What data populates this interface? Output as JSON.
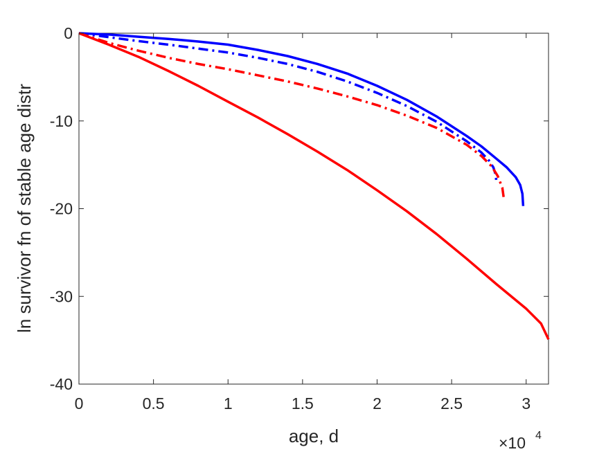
{
  "chart_data": {
    "type": "line",
    "title": "",
    "xlabel": "age, d",
    "ylabel": "ln survivor fn of stable age distr",
    "x_exponent_label": {
      "base": "×10",
      "power": "4"
    },
    "xlim": [
      0,
      31500
    ],
    "ylim": [
      -40,
      0
    ],
    "xticks": [
      0,
      5000,
      10000,
      15000,
      20000,
      25000,
      30000
    ],
    "xtick_labels": [
      "0",
      "0.5",
      "1",
      "1.5",
      "2",
      "2.5",
      "3"
    ],
    "yticks": [
      0,
      -10,
      -20,
      -30,
      -40
    ],
    "ytick_labels": [
      "0",
      "-10",
      "-20",
      "-30",
      "-40"
    ],
    "grid": false,
    "legend": "none",
    "series": [
      {
        "color": "#0000ff",
        "style": "solid",
        "x": [
          0,
          2000,
          4000,
          6000,
          8000,
          10000,
          12000,
          14000,
          16000,
          18000,
          20000,
          22000,
          24000,
          26000,
          27000,
          28000,
          28700,
          29300,
          29600,
          29750,
          29800
        ],
        "y": [
          0,
          -0.15,
          -0.4,
          -0.65,
          -0.95,
          -1.3,
          -1.9,
          -2.6,
          -3.5,
          -4.6,
          -6.0,
          -7.6,
          -9.5,
          -11.7,
          -12.9,
          -14.3,
          -15.3,
          -16.4,
          -17.3,
          -18.3,
          -19.7
        ]
      },
      {
        "color": "#0000ff",
        "style": "dashdot",
        "x": [
          0,
          2000,
          4000,
          6000,
          8000,
          10000,
          12000,
          14000,
          16000,
          18000,
          20000,
          22000,
          24000,
          26000,
          27000,
          27500,
          27800,
          27950,
          28000
        ],
        "y": [
          0,
          -0.45,
          -0.9,
          -1.3,
          -1.75,
          -2.2,
          -2.8,
          -3.5,
          -4.4,
          -5.5,
          -6.8,
          -8.3,
          -10.1,
          -12.3,
          -13.6,
          -14.5,
          -15.3,
          -16.1,
          -16.9
        ]
      },
      {
        "color": "#ff0000",
        "style": "dashdot",
        "x": [
          0,
          2000,
          4000,
          6000,
          8000,
          10000,
          12000,
          14000,
          16000,
          18000,
          20000,
          22000,
          24000,
          26000,
          27000,
          27700,
          28100,
          28400,
          28500
        ],
        "y": [
          0,
          -1.1,
          -2.0,
          -2.8,
          -3.5,
          -4.1,
          -4.8,
          -5.5,
          -6.3,
          -7.2,
          -8.2,
          -9.4,
          -10.8,
          -12.7,
          -14.0,
          -15.2,
          -16.3,
          -17.6,
          -18.8
        ]
      },
      {
        "color": "#ff0000",
        "style": "solid",
        "x": [
          0,
          2000,
          4000,
          6000,
          8000,
          10000,
          12000,
          14000,
          16000,
          18000,
          20000,
          22000,
          24000,
          26000,
          28000,
          30000,
          31000,
          31500
        ],
        "y": [
          0,
          -1.3,
          -2.7,
          -4.3,
          -6.0,
          -7.8,
          -9.6,
          -11.5,
          -13.5,
          -15.6,
          -17.9,
          -20.3,
          -22.9,
          -25.7,
          -28.6,
          -31.4,
          -33.1,
          -34.9
        ]
      }
    ]
  }
}
